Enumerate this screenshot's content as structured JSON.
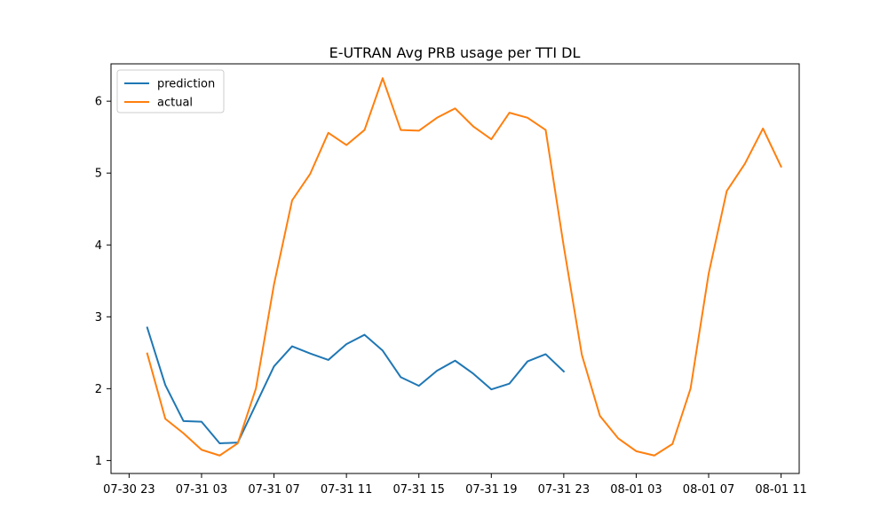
{
  "chart_data": {
    "type": "line",
    "title": "E-UTRAN Avg PRB usage per TTI DL",
    "xlabel": "",
    "ylabel": "",
    "x_ticks": [
      "07-30 23",
      "07-31 03",
      "07-31 07",
      "07-31 11",
      "07-31 15",
      "07-31 19",
      "07-31 23",
      "08-01 03",
      "08-01 07",
      "08-01 11"
    ],
    "y_ticks": [
      "1",
      "2",
      "3",
      "4",
      "5",
      "6"
    ],
    "xlim": [
      "07-30 22:00",
      "08-01 12:00"
    ],
    "ylim": [
      0.82,
      6.52
    ],
    "legend_position": "top-left",
    "grid": false,
    "series": [
      {
        "name": "prediction",
        "color": "#1f77b4",
        "points": [
          [
            "07-31 00:00",
            2.85
          ],
          [
            "07-31 01:00",
            2.05
          ],
          [
            "07-31 02:00",
            1.55
          ],
          [
            "07-31 03:00",
            1.54
          ],
          [
            "07-31 04:00",
            1.24
          ],
          [
            "07-31 05:00",
            1.25
          ],
          [
            "07-31 06:00",
            1.78
          ],
          [
            "07-31 07:00",
            2.31
          ],
          [
            "07-31 08:00",
            2.59
          ],
          [
            "07-31 09:00",
            2.49
          ],
          [
            "07-31 10:00",
            2.4
          ],
          [
            "07-31 11:00",
            2.62
          ],
          [
            "07-31 12:00",
            2.75
          ],
          [
            "07-31 13:00",
            2.53
          ],
          [
            "07-31 14:00",
            2.16
          ],
          [
            "07-31 15:00",
            2.04
          ],
          [
            "07-31 16:00",
            2.25
          ],
          [
            "07-31 17:00",
            2.39
          ],
          [
            "07-31 18:00",
            2.21
          ],
          [
            "07-31 19:00",
            1.99
          ],
          [
            "07-31 20:00",
            2.07
          ],
          [
            "07-31 21:00",
            2.38
          ],
          [
            "07-31 22:00",
            2.48
          ],
          [
            "07-31 23:00",
            2.24
          ]
        ]
      },
      {
        "name": "actual",
        "color": "#ff7f0e",
        "points": [
          [
            "07-31 00:00",
            2.49
          ],
          [
            "07-31 01:00",
            1.58
          ],
          [
            "07-31 02:00",
            1.38
          ],
          [
            "07-31 03:00",
            1.15
          ],
          [
            "07-31 04:00",
            1.07
          ],
          [
            "07-31 05:00",
            1.24
          ],
          [
            "07-31 06:00",
            2.0
          ],
          [
            "07-31 07:00",
            3.45
          ],
          [
            "07-31 08:00",
            4.62
          ],
          [
            "07-31 09:00",
            4.99
          ],
          [
            "07-31 10:00",
            5.56
          ],
          [
            "07-31 11:00",
            5.39
          ],
          [
            "07-31 12:00",
            5.6
          ],
          [
            "07-31 13:00",
            6.32
          ],
          [
            "07-31 14:00",
            5.6
          ],
          [
            "07-31 15:00",
            5.59
          ],
          [
            "07-31 16:00",
            5.77
          ],
          [
            "07-31 17:00",
            5.9
          ],
          [
            "07-31 18:00",
            5.65
          ],
          [
            "07-31 19:00",
            5.47
          ],
          [
            "07-31 20:00",
            5.84
          ],
          [
            "07-31 21:00",
            5.77
          ],
          [
            "07-31 22:00",
            5.6
          ],
          [
            "07-31 23:00",
            3.98
          ],
          [
            "08-01 00:00",
            2.47
          ],
          [
            "08-01 01:00",
            1.62
          ],
          [
            "08-01 02:00",
            1.31
          ],
          [
            "08-01 03:00",
            1.13
          ],
          [
            "08-01 04:00",
            1.07
          ],
          [
            "08-01 05:00",
            1.23
          ],
          [
            "08-01 06:00",
            2.0
          ],
          [
            "08-01 07:00",
            3.6
          ],
          [
            "08-01 08:00",
            4.75
          ],
          [
            "08-01 09:00",
            5.13
          ],
          [
            "08-01 10:00",
            5.62
          ],
          [
            "08-01 11:00",
            5.09
          ]
        ]
      }
    ]
  }
}
